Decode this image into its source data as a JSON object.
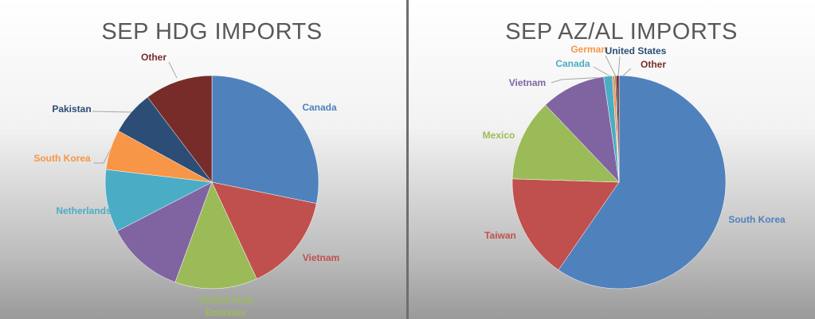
{
  "chart_data": [
    {
      "type": "pie",
      "title": "SEP HDG IMPORTS",
      "categories": [
        "Canada",
        "Vietnam",
        "United Arab Emirates",
        null,
        "Netherlands",
        "South Korea",
        "Pakistan",
        "Other"
      ],
      "values": [
        28.2,
        14.9,
        12.5,
        11.8,
        9.5,
        6.1,
        6.7,
        10.3
      ],
      "colors": [
        "#4f81bd",
        "#c0504d",
        "#9bbb59",
        "#8064a2",
        "#4bacc6",
        "#f79646",
        "#2c4d75",
        "#772c2a"
      ]
    },
    {
      "type": "pie",
      "title": "SEP AZ/AL IMPORTS",
      "categories": [
        "South Korea",
        "Taiwan",
        "Mexico",
        "Vietnam",
        "Canada",
        "German",
        "United States",
        "Other"
      ],
      "values": [
        59.6,
        15.9,
        12.4,
        9.8,
        1.3,
        0.4,
        0.2,
        0.4
      ],
      "colors": [
        "#4f81bd",
        "#c0504d",
        "#9bbb59",
        "#8064a2",
        "#4bacc6",
        "#f79646",
        "#2c4d75",
        "#772c2a"
      ]
    }
  ]
}
